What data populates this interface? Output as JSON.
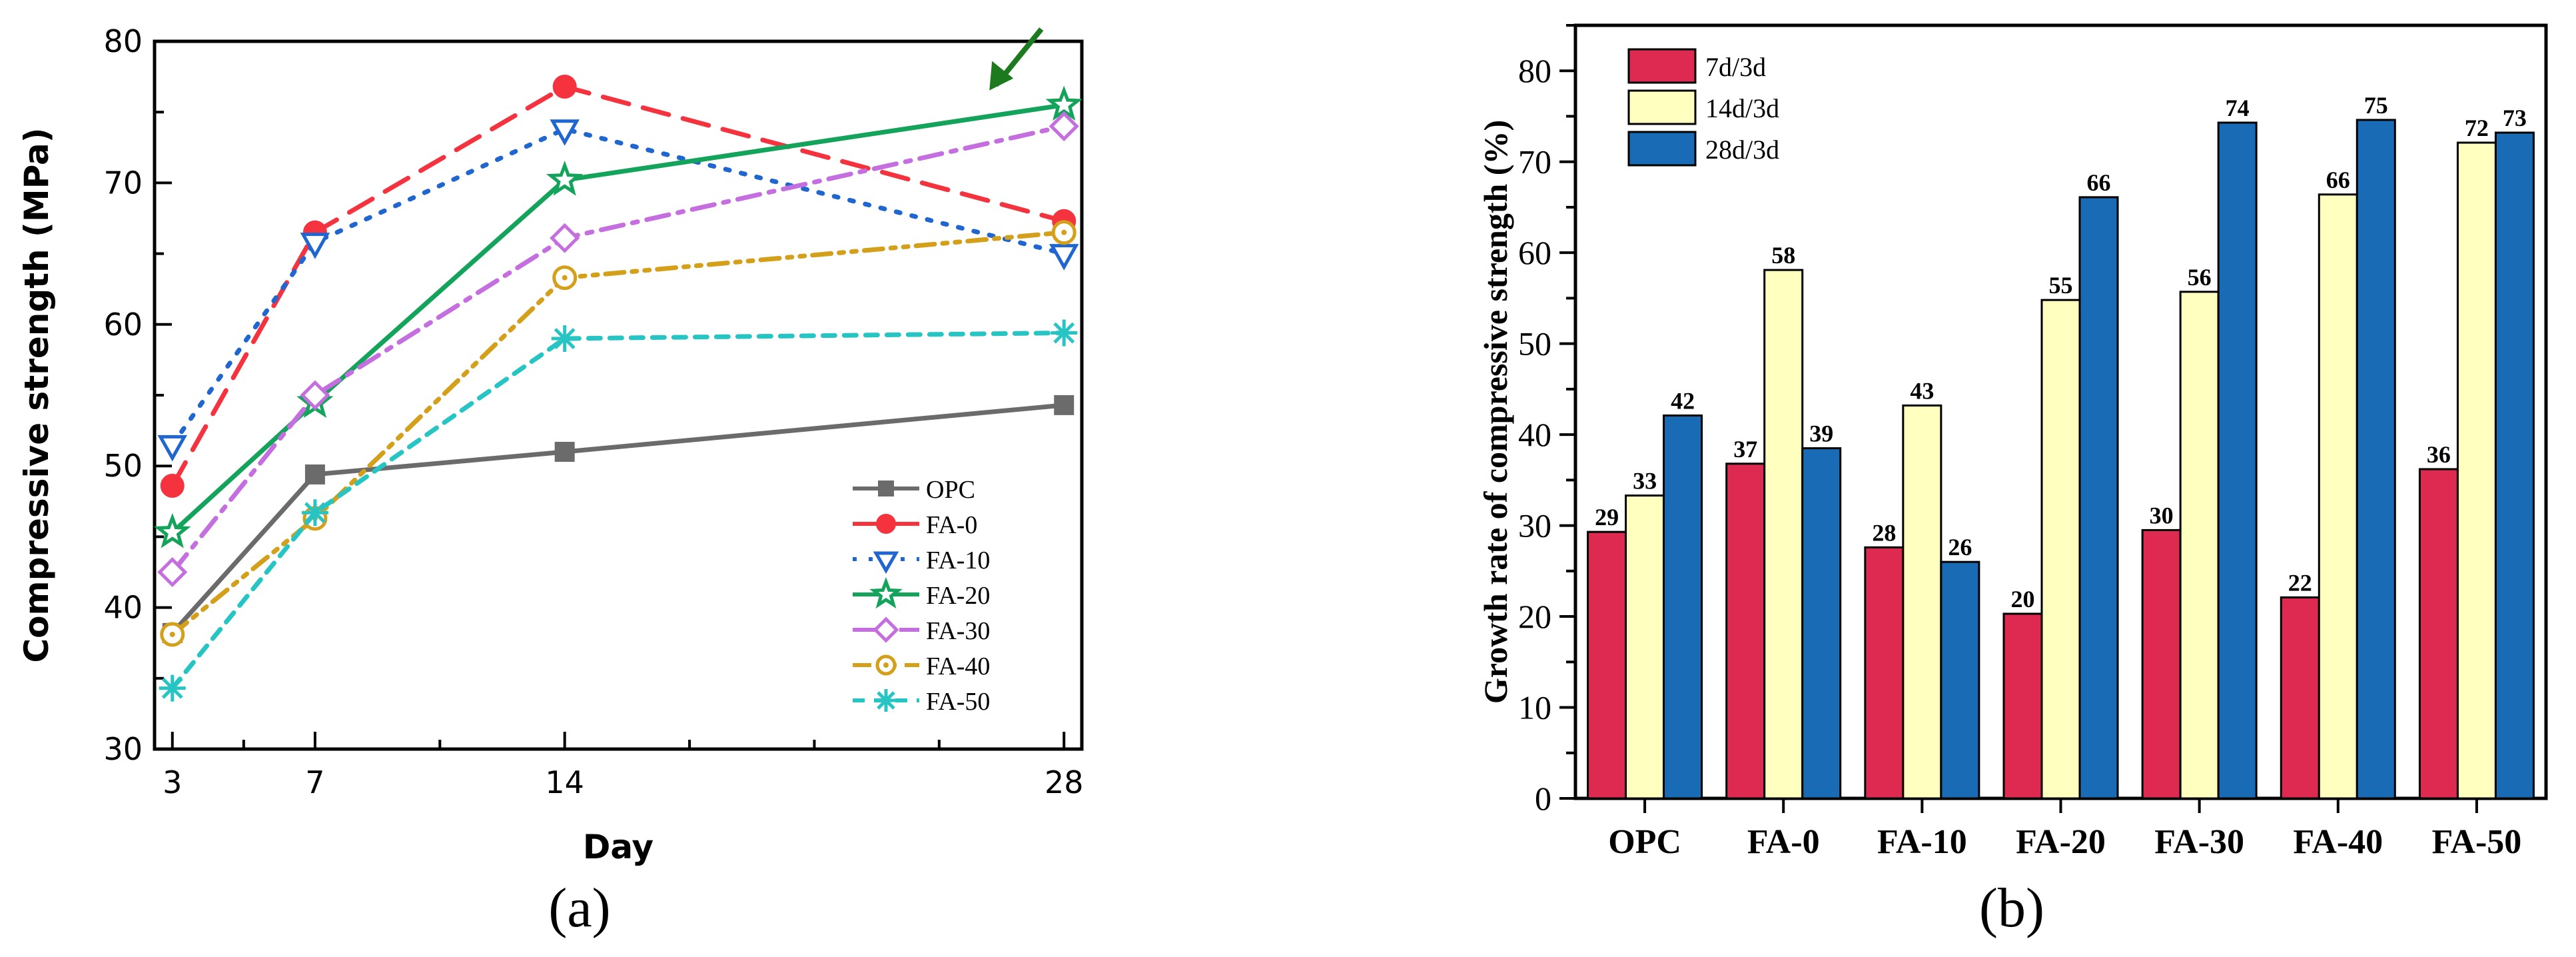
{
  "chart_data": [
    {
      "id": "a",
      "type": "line",
      "panel_label": "(a)",
      "title": "",
      "xlabel": "Day",
      "ylabel": "Compressive strength (MPa)",
      "x": [
        3,
        7,
        14,
        28
      ],
      "x_tick_labels": [
        "3",
        "7",
        "14",
        "28"
      ],
      "xlim": [
        2.5,
        28.5
      ],
      "ylim": [
        30,
        80
      ],
      "y_ticks": [
        30,
        40,
        50,
        60,
        70,
        80
      ],
      "y_tick_labels": [
        "30",
        "40",
        "50",
        "60",
        "70",
        "80"
      ],
      "legend_position": "bottom-right",
      "annotation": "arrow pointing to FA-20 at day 28",
      "series": [
        {
          "name": "OPC",
          "values": [
            38.2,
            49.4,
            51.0,
            54.3
          ],
          "color": "#6b6b6b",
          "marker": "square",
          "dash": "solid"
        },
        {
          "name": "FA-0",
          "values": [
            48.6,
            66.5,
            76.8,
            67.3
          ],
          "color": "#f5333f",
          "marker": "circle",
          "dash": "dashed"
        },
        {
          "name": "FA-10",
          "values": [
            51.5,
            65.8,
            73.8,
            65.0
          ],
          "color": "#1f66d1",
          "marker": "triangle",
          "dash": "dotted"
        },
        {
          "name": "FA-20",
          "values": [
            45.3,
            54.5,
            70.2,
            75.5
          ],
          "color": "#14a35a",
          "marker": "star",
          "dash": "solid"
        },
        {
          "name": "FA-30",
          "values": [
            42.5,
            55.0,
            66.1,
            74.0
          ],
          "color": "#c46ee0",
          "marker": "diamond",
          "dash": "dashdot"
        },
        {
          "name": "FA-40",
          "values": [
            38.1,
            46.3,
            63.3,
            66.5
          ],
          "color": "#d4a01a",
          "marker": "circle-dot",
          "dash": "dashdotdot"
        },
        {
          "name": "FA-50",
          "values": [
            34.3,
            46.7,
            59.0,
            59.4
          ],
          "color": "#27c4c4",
          "marker": "asterisk",
          "dash": "shortdash"
        }
      ]
    },
    {
      "id": "b",
      "type": "bar",
      "panel_label": "(b)",
      "title": "",
      "xlabel": "",
      "ylabel": "Growth rate of compressive strength (%)",
      "categories": [
        "OPC",
        "FA-0",
        "FA-10",
        "FA-20",
        "FA-30",
        "FA-40",
        "FA-50"
      ],
      "ylim": [
        0,
        85
      ],
      "y_ticks": [
        0,
        10,
        20,
        30,
        40,
        50,
        60,
        70,
        80
      ],
      "y_tick_labels": [
        "0",
        "10",
        "20",
        "30",
        "40",
        "50",
        "60",
        "70",
        "80"
      ],
      "legend_position": "top-left",
      "series": [
        {
          "name": "7d/3d",
          "color": "#de2a50",
          "values": [
            29.3,
            36.8,
            27.6,
            20.3,
            29.5,
            22.1,
            36.2
          ],
          "labels": [
            "29",
            "37",
            "28",
            "20",
            "30",
            "22",
            "36"
          ]
        },
        {
          "name": "14d/3d",
          "color": "#ffffc0",
          "values": [
            33.3,
            58.1,
            43.2,
            54.8,
            55.7,
            66.4,
            72.1
          ],
          "labels": [
            "33",
            "58",
            "43",
            "55",
            "56",
            "66",
            "72"
          ]
        },
        {
          "name": "28d/3d",
          "color": "#1a6bb5",
          "values": [
            42.1,
            38.5,
            26.0,
            66.1,
            74.3,
            74.6,
            73.2
          ],
          "labels": [
            "42",
            "39",
            "26",
            "66",
            "74",
            "75",
            "73"
          ]
        }
      ]
    }
  ]
}
